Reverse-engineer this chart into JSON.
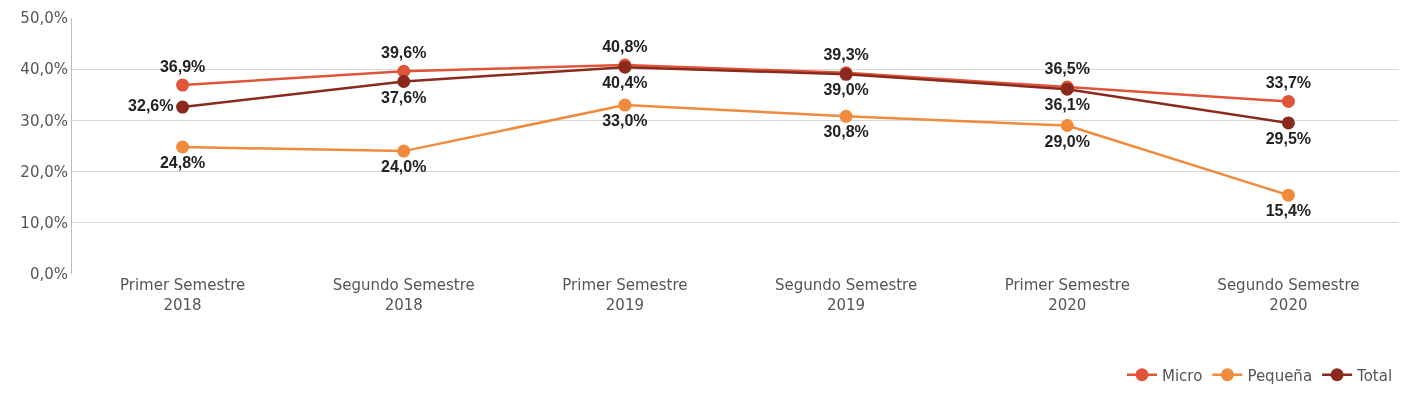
{
  "chart_data": {
    "type": "line",
    "categories": [
      "Primer Semestre 2018",
      "Segundo Semestre 2018",
      "Primer Semestre 2019",
      "Segundo Semestre 2019",
      "Primer Semestre 2020",
      "Segundo Semestre 2020"
    ],
    "series": [
      {
        "name": "Micro",
        "color": "#e0553a",
        "values": [
          36.9,
          39.6,
          40.8,
          39.3,
          36.5,
          33.7
        ],
        "value_labels": [
          "36,9%",
          "39,6%",
          "40,8%",
          "39,3%",
          "36,5%",
          "33,7%"
        ]
      },
      {
        "name": "Pequeña",
        "color": "#f08a3c",
        "values": [
          24.8,
          24.0,
          33.0,
          30.8,
          29.0,
          15.4
        ],
        "value_labels": [
          "24,8%",
          "24,0%",
          "33,0%",
          "30,8%",
          "29,0%",
          "15,4%"
        ]
      },
      {
        "name": "Total",
        "color": "#8b2a1c",
        "values": [
          32.6,
          37.6,
          40.4,
          39.0,
          36.1,
          29.5
        ],
        "value_labels": [
          "32,6%",
          "37,6%",
          "40,4%",
          "39,0%",
          "36,1%",
          "29,5%"
        ]
      }
    ],
    "ylim": [
      0,
      50
    ],
    "yticks": [
      {
        "value": 0,
        "label": "0,0%"
      },
      {
        "value": 10,
        "label": "10,0%"
      },
      {
        "value": 20,
        "label": "20,0%"
      },
      {
        "value": 30,
        "label": "30,0%"
      },
      {
        "value": 40,
        "label": "40,0%"
      },
      {
        "value": 50,
        "label": "50,0%"
      }
    ],
    "grid": "y",
    "legend": "bottom right",
    "marker": "circle",
    "line_style": "solid"
  }
}
